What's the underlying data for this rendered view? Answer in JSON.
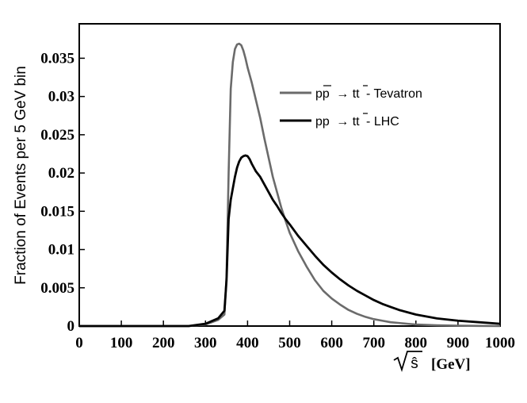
{
  "chart_data": {
    "type": "line",
    "title": "",
    "ylabel": "Fraction of Events per 5 GeV bin",
    "xlabel": {
      "var": "ŝ",
      "unit": "[GeV]"
    },
    "xlim": [
      0,
      1000
    ],
    "ylim": [
      0,
      0.0395
    ],
    "x_ticks": [
      "0",
      "100",
      "200",
      "300",
      "400",
      "500",
      "600",
      "700",
      "800",
      "900",
      "1000"
    ],
    "y_ticks": [
      {
        "value": 0,
        "label": "0"
      },
      {
        "value": 0.005,
        "label": "0.005"
      },
      {
        "value": 0.01,
        "label": "0.01"
      },
      {
        "value": 0.015,
        "label": "0.015"
      },
      {
        "value": 0.02,
        "label": "0.02"
      },
      {
        "value": 0.025,
        "label": "0.025"
      },
      {
        "value": 0.03,
        "label": "0.03"
      },
      {
        "value": 0.035,
        "label": "0.035"
      }
    ],
    "grid": false,
    "legend_position": "top-right",
    "series": [
      {
        "name": "pp̅ → tt̅ - Tevatron",
        "legend": {
          "a": "pp",
          "b": "→ tt",
          "c": "- Tevatron"
        },
        "color": "#6b6b6b",
        "x": [
          0,
          260,
          300,
          330,
          345,
          350,
          355,
          360,
          365,
          370,
          375,
          380,
          385,
          390,
          395,
          400,
          410,
          420,
          430,
          440,
          450,
          460,
          470,
          480,
          490,
          500,
          520,
          540,
          560,
          580,
          600,
          620,
          640,
          660,
          680,
          700,
          720,
          740,
          760,
          780,
          800,
          850,
          900,
          950,
          1000
        ],
        "y": [
          0,
          0,
          0.0002,
          0.0008,
          0.0015,
          0.0065,
          0.02,
          0.031,
          0.0345,
          0.0362,
          0.0368,
          0.0369,
          0.0367,
          0.036,
          0.035,
          0.0338,
          0.0318,
          0.0295,
          0.0272,
          0.0245,
          0.022,
          0.0195,
          0.0175,
          0.0155,
          0.0138,
          0.0122,
          0.0098,
          0.0078,
          0.006,
          0.0046,
          0.0036,
          0.0028,
          0.0021,
          0.0016,
          0.0012,
          0.0009,
          0.0007,
          0.0005,
          0.0004,
          0.0003,
          0.0002,
          0.0001,
          5e-05,
          2e-05,
          0
        ]
      },
      {
        "name": "pp → tt̅ - LHC",
        "legend": {
          "a": "pp",
          "b": "→ tt",
          "c": "- LHC"
        },
        "color": "#000000",
        "x": [
          0,
          260,
          300,
          330,
          345,
          350,
          355,
          360,
          365,
          370,
          375,
          380,
          385,
          390,
          395,
          400,
          405,
          410,
          420,
          430,
          440,
          450,
          460,
          470,
          480,
          490,
          500,
          520,
          540,
          560,
          580,
          600,
          620,
          640,
          660,
          680,
          700,
          720,
          740,
          760,
          780,
          800,
          850,
          900,
          950,
          1000
        ],
        "y": [
          0,
          0,
          0.0003,
          0.001,
          0.002,
          0.006,
          0.014,
          0.0165,
          0.018,
          0.0195,
          0.0207,
          0.0215,
          0.022,
          0.0222,
          0.0223,
          0.0222,
          0.0218,
          0.0212,
          0.0202,
          0.0195,
          0.0185,
          0.0175,
          0.0165,
          0.0157,
          0.0148,
          0.014,
          0.0133,
          0.0118,
          0.0105,
          0.0092,
          0.008,
          0.007,
          0.0061,
          0.0053,
          0.0046,
          0.004,
          0.0034,
          0.0029,
          0.0025,
          0.0021,
          0.0018,
          0.0015,
          0.001,
          0.0007,
          0.0005,
          0.0003
        ]
      }
    ]
  }
}
